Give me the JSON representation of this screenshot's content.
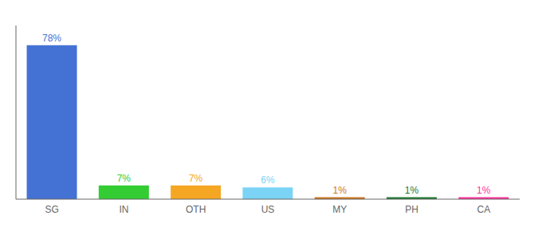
{
  "chart_data": {
    "type": "bar",
    "categories": [
      "SG",
      "IN",
      "OTH",
      "US",
      "MY",
      "PH",
      "CA"
    ],
    "values": [
      78,
      7,
      7,
      6,
      1,
      1,
      1
    ],
    "value_labels": [
      "78%",
      "7%",
      "7%",
      "6%",
      "1%",
      "1%",
      "1%"
    ],
    "colors": [
      "#4472d4",
      "#33cc33",
      "#f5a623",
      "#7bd4f5",
      "#cc7722",
      "#1e7a32",
      "#ff3399"
    ],
    "ylim": [
      0,
      88
    ],
    "grid": false,
    "data_labels": true,
    "tick_labels": "x"
  }
}
